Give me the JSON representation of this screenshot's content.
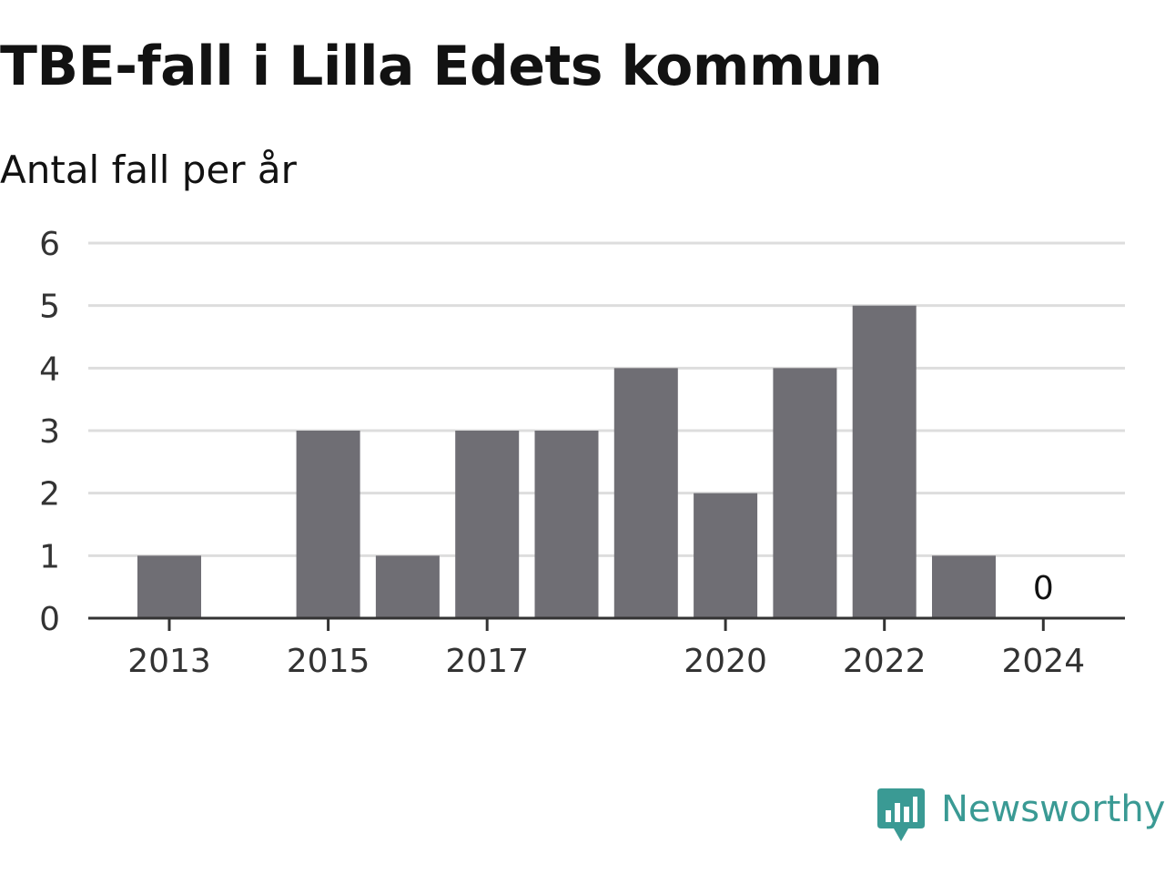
{
  "title": "TBE-fall i Lilla Edets kommun",
  "subtitle": "Antal fall per år",
  "brand": {
    "name": "Newsworthy",
    "color": "#3a9a94"
  },
  "chart_data": {
    "type": "bar",
    "categories": [
      "2013",
      "2014",
      "2015",
      "2016",
      "2017",
      "2018",
      "2019",
      "2020",
      "2021",
      "2022",
      "2023",
      "2024"
    ],
    "values": [
      1,
      null,
      3,
      1,
      3,
      3,
      4,
      2,
      4,
      5,
      1,
      0
    ],
    "x_tick_labels": [
      "2013",
      "2015",
      "2017",
      "2020",
      "2022",
      "2024"
    ],
    "y_ticks": [
      0,
      1,
      2,
      3,
      4,
      5,
      6
    ],
    "ylim": [
      0,
      6
    ],
    "data_labels": [
      {
        "category": "2024",
        "text": "0"
      }
    ],
    "grid": true,
    "legend": "none",
    "bar_color": "#6f6e74",
    "grid_color": "#dddddd",
    "axis_color": "#333333"
  }
}
